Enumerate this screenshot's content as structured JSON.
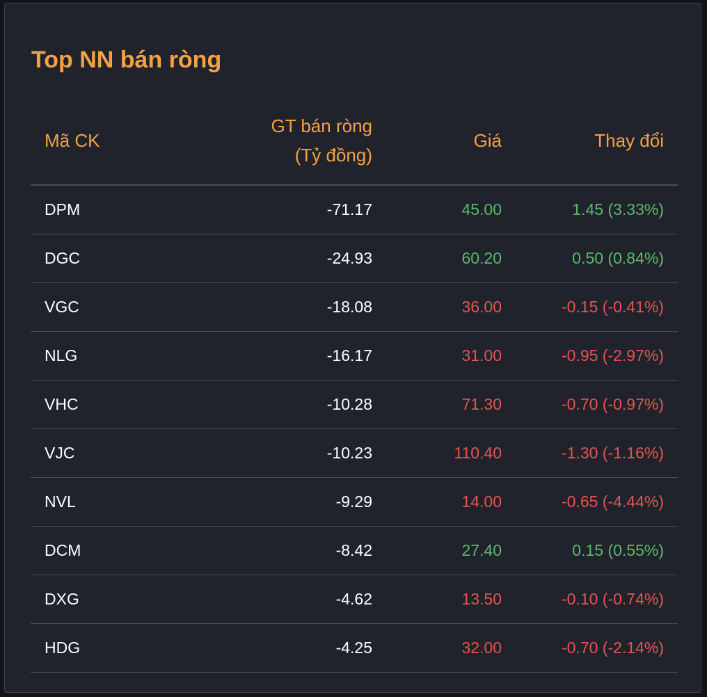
{
  "title": "Top NN bán ròng",
  "columns": {
    "code": "Mã CK",
    "value_line1": "GT bán ròng",
    "value_line2": "(Tỷ đồng)",
    "price": "Giá",
    "change": "Thay đổi"
  },
  "colors": {
    "accent": "#f3a243",
    "up": "#5cb96c",
    "down": "#e5554f",
    "background": "#20232c"
  },
  "rows": [
    {
      "code": "DPM",
      "value": "-71.17",
      "price": "45.00",
      "change": "1.45 (3.33%)",
      "trend": "up"
    },
    {
      "code": "DGC",
      "value": "-24.93",
      "price": "60.20",
      "change": "0.50 (0.84%)",
      "trend": "up"
    },
    {
      "code": "VGC",
      "value": "-18.08",
      "price": "36.00",
      "change": "-0.15 (-0.41%)",
      "trend": "down"
    },
    {
      "code": "NLG",
      "value": "-16.17",
      "price": "31.00",
      "change": "-0.95 (-2.97%)",
      "trend": "down"
    },
    {
      "code": "VHC",
      "value": "-10.28",
      "price": "71.30",
      "change": "-0.70 (-0.97%)",
      "trend": "down"
    },
    {
      "code": "VJC",
      "value": "-10.23",
      "price": "110.40",
      "change": "-1.30 (-1.16%)",
      "trend": "down"
    },
    {
      "code": "NVL",
      "value": "-9.29",
      "price": "14.00",
      "change": "-0.65 (-4.44%)",
      "trend": "down"
    },
    {
      "code": "DCM",
      "value": "-8.42",
      "price": "27.40",
      "change": "0.15 (0.55%)",
      "trend": "up"
    },
    {
      "code": "DXG",
      "value": "-4.62",
      "price": "13.50",
      "change": "-0.10 (-0.74%)",
      "trend": "down"
    },
    {
      "code": "HDG",
      "value": "-4.25",
      "price": "32.00",
      "change": "-0.70 (-2.14%)",
      "trend": "down"
    }
  ]
}
